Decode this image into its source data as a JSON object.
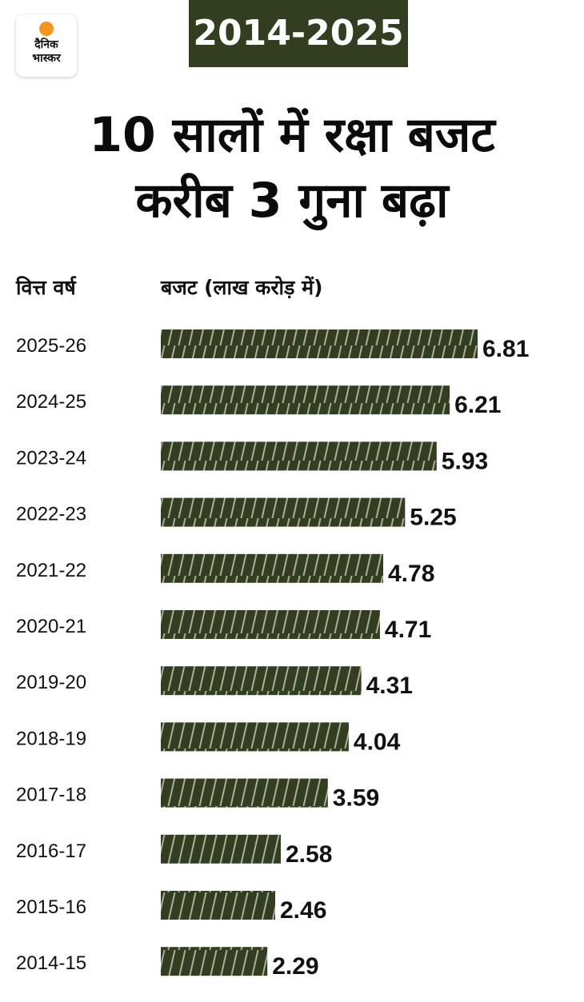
{
  "logo": {
    "line1": "दैनिक",
    "line2": "भास्कर"
  },
  "period": "2014-2025",
  "title": {
    "line1": "10 सालों में रक्षा बजट",
    "line2": "करीब 3 गुना बढ़ा"
  },
  "columns": {
    "year": "वित्त वर्ष",
    "value": "बजट (लाख करोड़ में)"
  },
  "colors": {
    "bar": "#333d1f",
    "stripe": "#a9ae9c",
    "badge": "#333d1f",
    "logo_dot": "#f7941d"
  },
  "chart_data": {
    "type": "bar",
    "orientation": "horizontal",
    "categories": [
      "2025-26",
      "2024-25",
      "2023-24",
      "2022-23",
      "2021-22",
      "2020-21",
      "2019-20",
      "2018-19",
      "2017-18",
      "2016-17",
      "2015-16",
      "2014-15"
    ],
    "values": [
      6.81,
      6.21,
      5.93,
      5.25,
      4.78,
      4.71,
      4.31,
      4.04,
      3.59,
      2.58,
      2.46,
      2.29
    ],
    "value_labels": [
      "6.81",
      "6.21",
      "5.93",
      "5.25",
      "4.78",
      "4.71",
      "4.31",
      "4.04",
      "3.59",
      "2.58",
      "2.46",
      "2.29"
    ],
    "title": "10 सालों में रक्षा बजट करीब 3 गुना बढ़ा",
    "xlabel": "बजट (लाख करोड़ में)",
    "ylabel": "वित्त वर्ष",
    "xlim": [
      0,
      6.81
    ],
    "grid": false,
    "legend": "none"
  }
}
